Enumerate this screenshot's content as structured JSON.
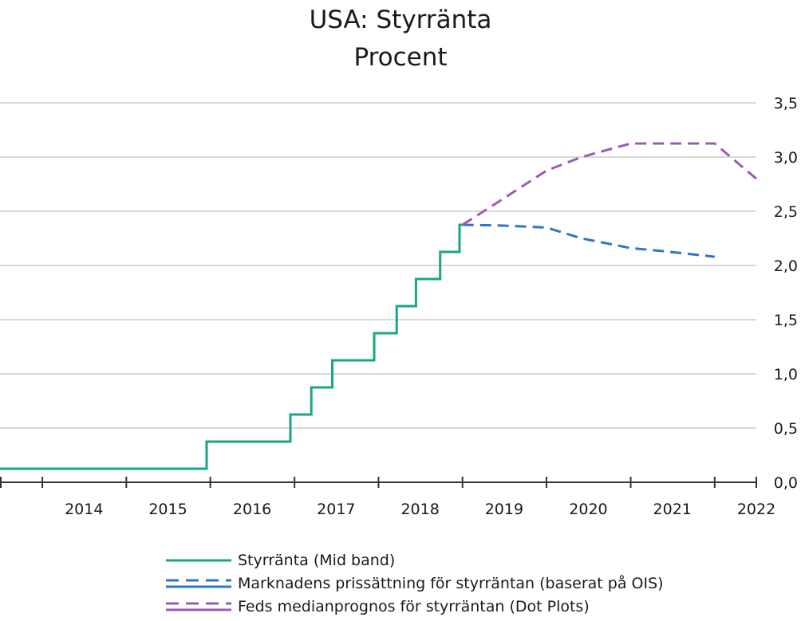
{
  "chart_data": {
    "type": "line",
    "title": "USA: Styrränta",
    "subtitle": "Procent",
    "ylim": [
      0,
      3.5
    ],
    "yticks": [
      "0,0",
      "0,5",
      "1,0",
      "1,5",
      "2,0",
      "2,5",
      "3,0",
      "3,5"
    ],
    "ytick_values": [
      0,
      0.5,
      1.0,
      1.5,
      2.0,
      2.5,
      3.0,
      3.5
    ],
    "y_axis_side": "right",
    "xlim": [
      "2013-07-01",
      "2022-07-01"
    ],
    "xticks": [
      "2014",
      "2015",
      "2016",
      "2017",
      "2018",
      "2019",
      "2020",
      "2021",
      "2022"
    ],
    "grid": "horizontal",
    "legend_position": "bottom",
    "colors": {
      "grid": "#cccccc",
      "axis": "#333333"
    },
    "series": [
      {
        "name": "Styrränta (Mid band)",
        "style": "solid",
        "color": "#1aa685",
        "points": [
          [
            "2013-07-01",
            0.125
          ],
          [
            "2015-12-16",
            0.125
          ],
          [
            "2015-12-16",
            0.375
          ],
          [
            "2016-12-14",
            0.375
          ],
          [
            "2016-12-14",
            0.625
          ],
          [
            "2017-03-15",
            0.625
          ],
          [
            "2017-03-15",
            0.875
          ],
          [
            "2017-06-14",
            0.875
          ],
          [
            "2017-06-14",
            1.125
          ],
          [
            "2017-12-13",
            1.125
          ],
          [
            "2017-12-13",
            1.375
          ],
          [
            "2018-03-21",
            1.375
          ],
          [
            "2018-03-21",
            1.625
          ],
          [
            "2018-06-13",
            1.625
          ],
          [
            "2018-06-13",
            1.875
          ],
          [
            "2018-09-26",
            1.875
          ],
          [
            "2018-09-26",
            2.125
          ],
          [
            "2018-12-19",
            2.125
          ],
          [
            "2018-12-19",
            2.375
          ],
          [
            "2019-01-01",
            2.375
          ]
        ]
      },
      {
        "name": "Marknadens prissättning för styrräntan (baserat på OIS)",
        "style": "dashed",
        "color": "#2e75c4",
        "points": [
          [
            "2019-01-01",
            2.375
          ],
          [
            "2019-06-01",
            2.37
          ],
          [
            "2020-01-01",
            2.35
          ],
          [
            "2020-06-01",
            2.25
          ],
          [
            "2021-01-01",
            2.16
          ],
          [
            "2021-06-01",
            2.13
          ],
          [
            "2022-01-01",
            2.08
          ]
        ]
      },
      {
        "name": "Feds medianprognos för styrräntan (Dot Plots)",
        "style": "dashed",
        "color": "#9c59b6",
        "points": [
          [
            "2019-01-01",
            2.375
          ],
          [
            "2019-06-01",
            2.58
          ],
          [
            "2020-01-01",
            2.875
          ],
          [
            "2020-06-01",
            3.0
          ],
          [
            "2021-01-01",
            3.125
          ],
          [
            "2022-01-01",
            3.125
          ],
          [
            "2022-07-01",
            2.8
          ]
        ]
      }
    ]
  }
}
